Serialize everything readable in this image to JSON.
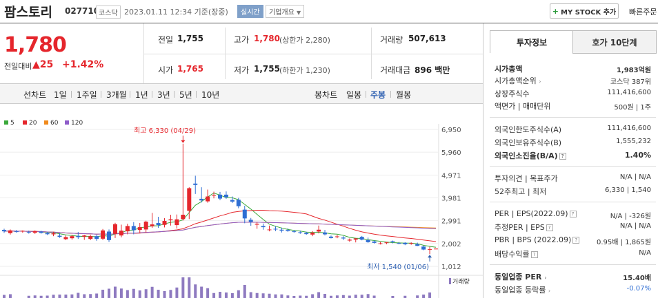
{
  "header": {
    "title": "팜스토리",
    "code": "027710",
    "market": "코스닥",
    "datetime": "2023.01.11 12:34 기준(장중)",
    "realtime": "실시간",
    "overview": "기업개요",
    "mystock": "MY STOCK 추가",
    "quick_order": "빠른주문"
  },
  "price": {
    "current": "1,780",
    "change_label": "전일대비",
    "change_value": "25",
    "change_pct": "+1.42%"
  },
  "quote": {
    "prev_close_label": "전일",
    "prev_close": "1,755",
    "high_label": "고가",
    "high": "1,780",
    "upper_limit": "(상한가 2,280)",
    "volume_label": "거래량",
    "volume": "507,613",
    "open_label": "시가",
    "open": "1,765",
    "low_label": "저가",
    "low": "1,755",
    "lower_limit": "(하한가 1,230)",
    "amount_label": "거래대금",
    "amount": "896 백만"
  },
  "chart_controls": {
    "line_label": "선차트",
    "line_periods": [
      "1일",
      "1주일",
      "3개월",
      "1년",
      "3년",
      "5년",
      "10년"
    ],
    "candle_label": "봉차트",
    "candle_periods": [
      "일봉",
      "주봉",
      "월봉"
    ],
    "candle_selected": "주봉"
  },
  "colors": {
    "up": "#e5262c",
    "down": "#2f6ed3",
    "ma5": "#3aa83a",
    "ma20": "#e5262c",
    "ma60": "#f08a1c",
    "ma120": "#8e5cc9",
    "volume": "#8e7ac0"
  },
  "chart": {
    "legend": [
      "5",
      "20",
      "60",
      "120"
    ],
    "y_ticks": [
      "6,950",
      "5,960",
      "4,971",
      "3,981",
      "2,991",
      "2,002",
      "1,012"
    ],
    "high_note": "최고 6,330 (04/29)",
    "low_note": "최저 1,540 (01/06)",
    "volume_label": "거래량"
  },
  "chart_data": {
    "type": "candlestick",
    "ylim": [
      1012,
      6950
    ],
    "candles": [
      [
        2591,
        2641,
        2460,
        2531
      ],
      [
        2451,
        2611,
        2390,
        2570
      ],
      [
        2530,
        2590,
        2471,
        2500
      ],
      [
        2520,
        2570,
        2470,
        2551
      ],
      [
        2500,
        2560,
        2430,
        2475
      ],
      [
        2470,
        2570,
        2420,
        2540
      ],
      [
        2520,
        2560,
        2430,
        2460
      ],
      [
        2450,
        2510,
        2370,
        2405
      ],
      [
        2400,
        2510,
        2320,
        2440
      ],
      [
        2340,
        2450,
        2250,
        2290
      ],
      [
        2190,
        2350,
        2150,
        2280
      ],
      [
        2230,
        2380,
        2170,
        2320
      ],
      [
        2331,
        2500,
        2200,
        2280
      ],
      [
        2300,
        2380,
        2160,
        2350
      ],
      [
        2200,
        2380,
        2150,
        2320
      ],
      [
        2320,
        2380,
        2120,
        2200
      ],
      [
        2210,
        2631,
        2150,
        2570
      ],
      [
        2520,
        2611,
        2070,
        2150
      ],
      [
        2420,
        2900,
        2240,
        2840
      ],
      [
        2350,
        2820,
        2270,
        2560
      ],
      [
        2530,
        2860,
        2400,
        2760
      ],
      [
        2761,
        2931,
        2400,
        2580
      ],
      [
        2591,
        2891,
        2450,
        2710
      ],
      [
        2610,
        2990,
        2480,
        2950
      ],
      [
        2751,
        3330,
        2680,
        2830
      ],
      [
        2890,
        3160,
        2680,
        2800
      ],
      [
        2810,
        3100,
        2700,
        2980
      ],
      [
        3010,
        3250,
        2780,
        3050
      ],
      [
        2800,
        3260,
        2650,
        3050
      ],
      [
        3060,
        6330,
        3000,
        3250
      ],
      [
        3420,
        4440,
        3060,
        4400
      ],
      [
        4600,
        4940,
        4150,
        4540
      ],
      [
        3940,
        4440,
        3780,
        3870
      ],
      [
        3830,
        4340,
        3770,
        4040
      ],
      [
        4090,
        4250,
        3960,
        4100
      ],
      [
        4120,
        4240,
        3880,
        3950
      ],
      [
        4120,
        4260,
        3940,
        4010
      ],
      [
        3890,
        4040,
        3760,
        3820
      ],
      [
        3900,
        3980,
        3530,
        3620
      ],
      [
        3470,
        3640,
        2880,
        3090
      ],
      [
        3030,
        3110,
        2770,
        2940
      ],
      [
        2820,
        2930,
        2640,
        2860
      ],
      [
        2760,
        2870,
        2600,
        2710
      ],
      [
        2600,
        2780,
        2530,
        2610
      ],
      [
        2640,
        2750,
        2540,
        2630
      ],
      [
        2600,
        2690,
        2480,
        2560
      ],
      [
        2590,
        2660,
        2510,
        2545
      ],
      [
        2530,
        2590,
        2470,
        2510
      ],
      [
        2490,
        2560,
        2420,
        2460
      ],
      [
        2460,
        2510,
        2380,
        2410
      ],
      [
        2390,
        2540,
        2320,
        2470
      ],
      [
        2520,
        2780,
        2440,
        2600
      ],
      [
        2480,
        2590,
        2350,
        2400
      ],
      [
        2300,
        2350,
        2220,
        2240
      ],
      [
        2300,
        2380,
        2230,
        2310
      ],
      [
        2260,
        2320,
        2150,
        2220
      ],
      [
        2130,
        2220,
        2080,
        2170
      ],
      [
        2170,
        2240,
        2050,
        2220
      ],
      [
        2290,
        2330,
        2140,
        2170
      ],
      [
        2150,
        2260,
        2030,
        2060
      ],
      [
        2090,
        2140,
        2000,
        2030
      ],
      [
        1990,
        2060,
        1960,
        2010
      ],
      [
        2040,
        2070,
        1970,
        2050
      ],
      [
        2100,
        2130,
        2010,
        2060
      ],
      [
        2020,
        2070,
        1970,
        2000
      ],
      [
        2030,
        2060,
        1930,
        1970
      ],
      [
        2000,
        2050,
        1950,
        2020
      ],
      [
        1970,
        2040,
        1890,
        1900
      ],
      [
        1870,
        1910,
        1710,
        1740
      ],
      [
        1730,
        1860,
        1540,
        1755
      ],
      [
        1765,
        1780,
        1755,
        1780
      ]
    ]
  }
}
